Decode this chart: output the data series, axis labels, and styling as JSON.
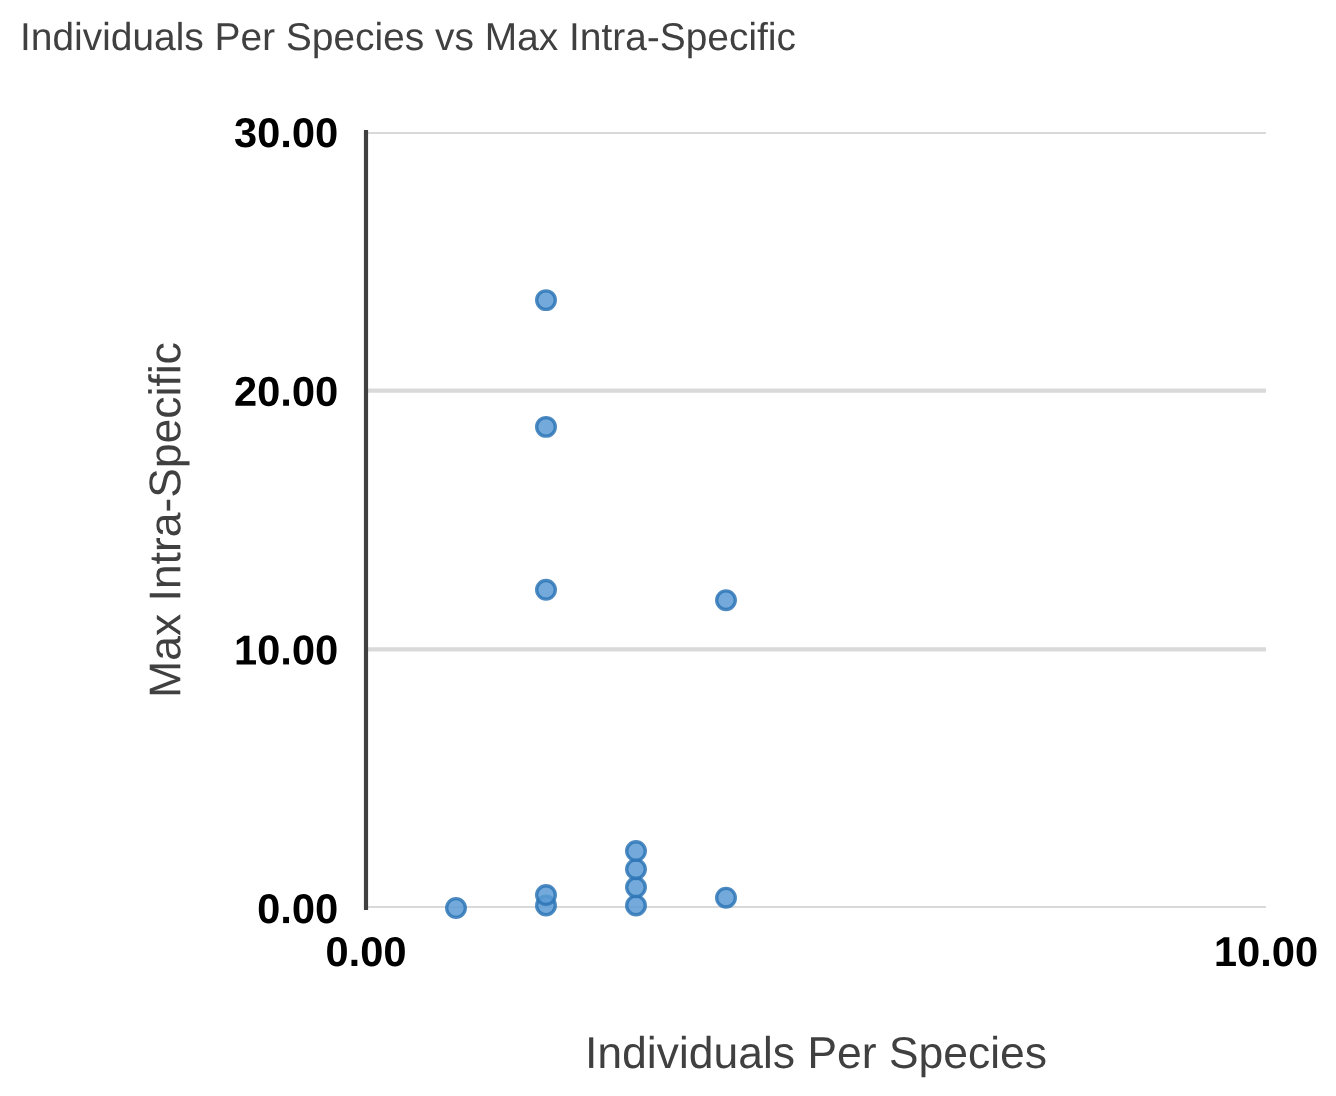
{
  "chart_data": {
    "type": "scatter",
    "title": "Individuals Per Species vs Max Intra-Specific",
    "xlabel": "Individuals Per Species",
    "ylabel": "Max Intra-Specific",
    "series": [
      {
        "color": "#5b9bd5",
        "x": [
          1,
          2,
          2,
          2,
          2,
          2,
          3,
          3,
          3,
          3,
          4,
          4
        ],
        "values": [
          0,
          0.1,
          0.5,
          12.3,
          18.6,
          23.5,
          0.1,
          0.8,
          1.5,
          2.2,
          0.4,
          11.9
        ]
      }
    ],
    "xlim": [
      0,
      10
    ],
    "xticks": [
      {
        "value": 0,
        "label": "0.00"
      },
      {
        "value": 10,
        "label": "10.00"
      }
    ],
    "ylim": [
      0,
      30
    ],
    "yticks": [
      {
        "value": 0,
        "label": "0.00"
      },
      {
        "value": 10,
        "label": "10.00"
      },
      {
        "value": 20,
        "label": "20.00"
      },
      {
        "value": 30,
        "label": "30.00"
      }
    ],
    "grid": "y",
    "marker": "circle"
  }
}
